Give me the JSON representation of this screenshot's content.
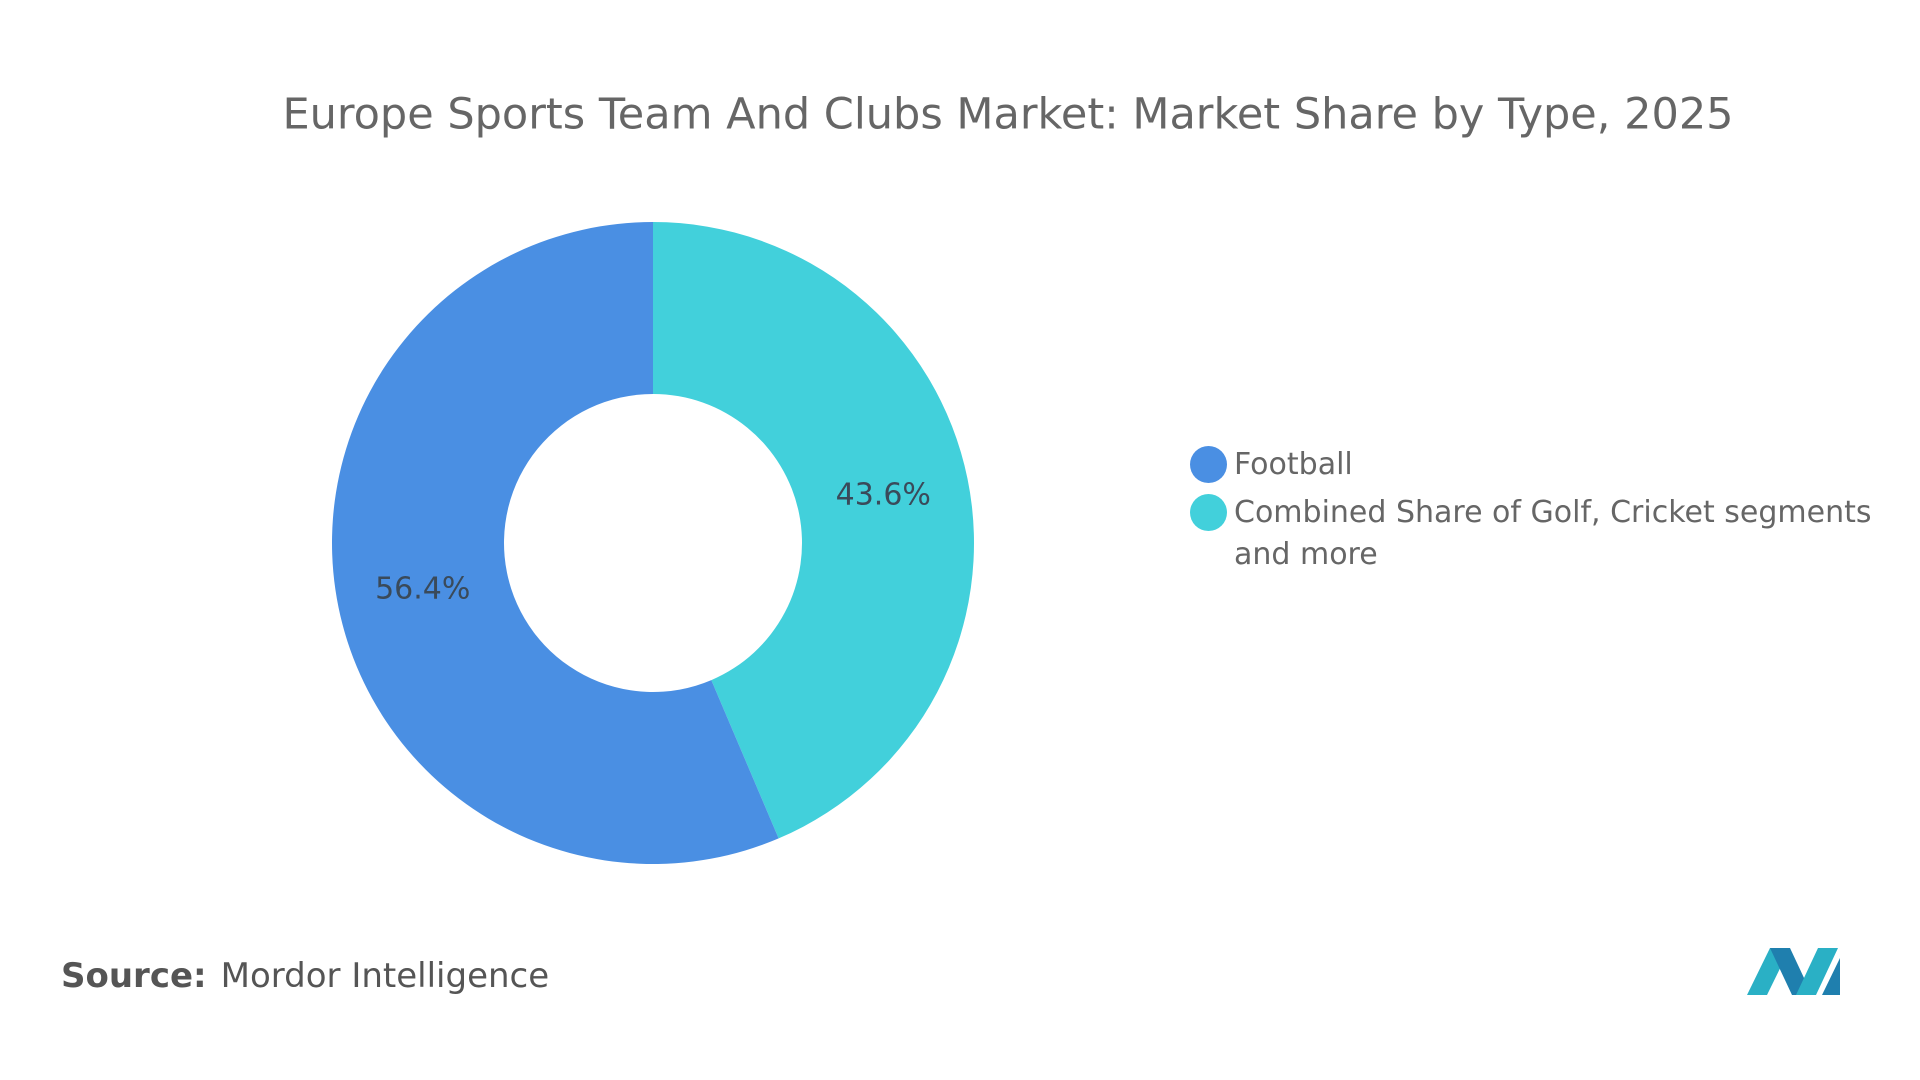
{
  "chart_data": {
    "type": "donut",
    "title": "Europe Sports Team And Clubs Market: Market Share by Type, 2025",
    "series": [
      {
        "name": "Football",
        "color": "#4a8fe3",
        "values": [
          56.4
        ],
        "value_labels": [
          "56.4%"
        ]
      },
      {
        "name": "Combined Share of Golf, Cricket segments and more",
        "color": "#42d0db",
        "values": [
          43.6
        ],
        "value_labels": [
          "43.6%"
        ]
      }
    ],
    "source_label": "Source:",
    "source": "Mordor Intelligence"
  }
}
